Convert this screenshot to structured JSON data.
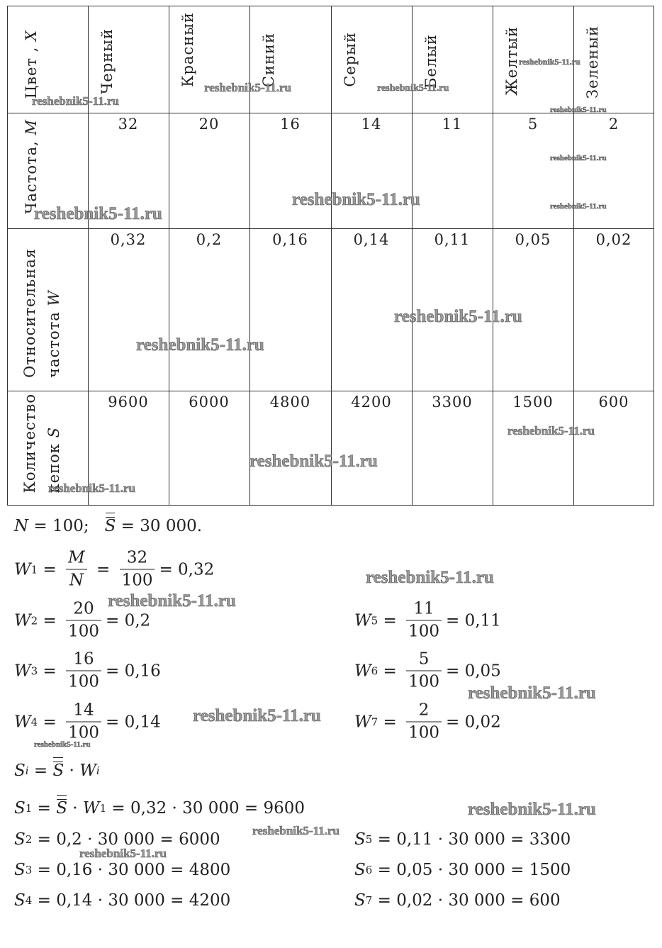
{
  "table": {
    "row_headers": {
      "color": {
        "label": "Цвет , ",
        "var": "X"
      },
      "frequency": {
        "label": "Частота, ",
        "var": "M"
      },
      "relative": {
        "line1": "Относительная",
        "line2": "частота ",
        "var": "W"
      },
      "count": {
        "line1": "Количество",
        "line2": "кепок ",
        "var": "S"
      }
    },
    "colors": [
      "Черный",
      "Красный",
      "Синий",
      "Серый",
      "Белый",
      "Желтый",
      "Зеленый"
    ],
    "frequencies": [
      "32",
      "20",
      "16",
      "14",
      "11",
      "5",
      "2"
    ],
    "relative_frequencies": [
      "0,32",
      "0,2",
      "0,16",
      "0,14",
      "0,11",
      "0,05",
      "0,02"
    ],
    "counts": [
      "9600",
      "6000",
      "4800",
      "4200",
      "3300",
      "1500",
      "600"
    ]
  },
  "given": {
    "n": "N",
    "n_rest": " = 100;   ",
    "s": "S",
    "s_rest": " = 30 000."
  },
  "w_formulas": [
    {
      "sub": "1",
      "mn_num": "M",
      "mn_den": "N",
      "num": "32",
      "den": "100",
      "result": "= 0,32"
    },
    {
      "sub": "2",
      "num": "20",
      "den": "100",
      "result": "= 0,2"
    },
    {
      "sub": "3",
      "num": "16",
      "den": "100",
      "result": "= 0,16"
    },
    {
      "sub": "4",
      "num": "14",
      "den": "100",
      "result": "= 0,14"
    },
    {
      "sub": "5",
      "num": "11",
      "den": "100",
      "result": "= 0,11"
    },
    {
      "sub": "6",
      "num": "5",
      "den": "100",
      "result": "= 0,05"
    },
    {
      "sub": "7",
      "num": "2",
      "den": "100",
      "result": "= 0,02"
    }
  ],
  "s_general": {
    "lhs": "S",
    "lhs_sub": "i",
    "eq": " = ",
    "s": "S",
    "dot": " · ",
    "w": "W",
    "w_sub": "i"
  },
  "s_formulas": [
    {
      "sub": "1",
      "rest": " = 0,32 · 30 000 = 9600",
      "prefix_s": "S",
      "prefix_w": "W",
      "prefix_w_sub": "1"
    },
    {
      "sub": "2",
      "rest": " = 0,2 · 30 000 = 6000"
    },
    {
      "sub": "3",
      "rest": " = 0,16 · 30 000 = 4800"
    },
    {
      "sub": "4",
      "rest": " = 0,14 · 30 000 = 4200"
    },
    {
      "sub": "5",
      "rest": " = 0,11 · 30 000 = 3300"
    },
    {
      "sub": "6",
      "rest": " = 0,05 · 30 000 = 1500"
    },
    {
      "sub": "7",
      "rest": " = 0,02 · 30 000 = 600"
    }
  ],
  "symbols": {
    "W": "W",
    "S": "S",
    "eq": " = ",
    "dot": " · "
  },
  "watermark": "reshebnik5-11.ru"
}
